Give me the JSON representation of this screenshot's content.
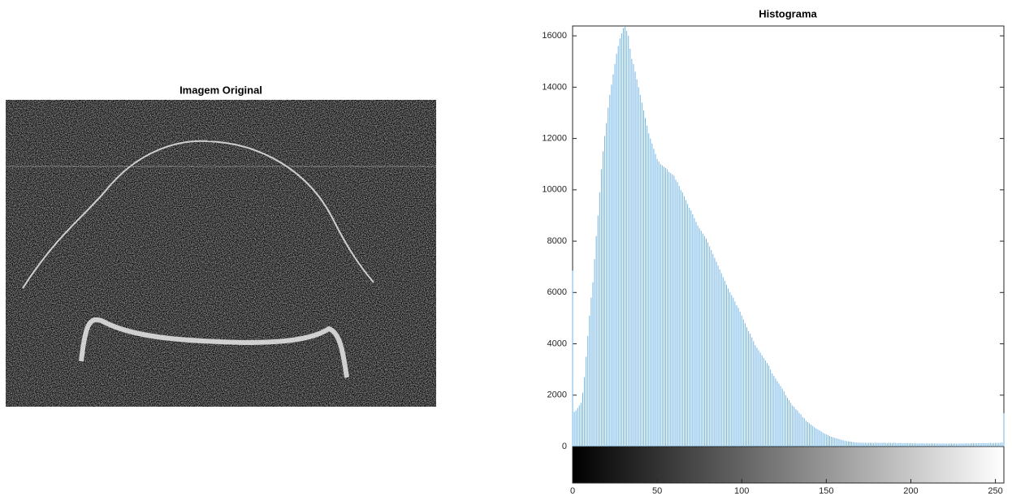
{
  "image_panel": {
    "title": "Imagem Original"
  },
  "chart_data": {
    "type": "histogram-stem",
    "title": "Histograma",
    "color": "#72b5e6",
    "x": [
      0,
      1,
      2,
      3,
      4,
      5,
      6,
      7,
      8,
      9,
      10,
      11,
      12,
      13,
      14,
      15,
      16,
      17,
      18,
      19,
      20,
      21,
      22,
      23,
      24,
      25,
      26,
      27,
      28,
      29,
      30,
      31,
      32,
      33,
      34,
      35,
      36,
      37,
      38,
      39,
      40,
      41,
      42,
      43,
      44,
      45,
      46,
      47,
      48,
      49,
      50,
      51,
      52,
      53,
      54,
      55,
      56,
      57,
      58,
      59,
      60,
      61,
      62,
      63,
      64,
      65,
      66,
      67,
      68,
      69,
      70,
      71,
      72,
      73,
      74,
      75,
      76,
      77,
      78,
      79,
      80,
      81,
      82,
      83,
      84,
      85,
      86,
      87,
      88,
      89,
      90,
      91,
      92,
      93,
      94,
      95,
      96,
      97,
      98,
      99,
      100,
      101,
      102,
      103,
      104,
      105,
      106,
      107,
      108,
      109,
      110,
      111,
      112,
      113,
      114,
      115,
      116,
      117,
      118,
      119,
      120,
      121,
      122,
      123,
      124,
      125,
      126,
      127,
      128,
      129,
      130,
      131,
      132,
      133,
      134,
      135,
      136,
      137,
      138,
      139,
      140,
      141,
      142,
      143,
      144,
      145,
      146,
      147,
      148,
      149,
      150,
      151,
      152,
      153,
      154,
      155,
      156,
      157,
      158,
      159,
      160,
      161,
      162,
      163,
      164,
      165,
      166,
      167,
      168,
      169,
      170,
      171,
      172,
      173,
      174,
      175,
      176,
      177,
      178,
      179,
      180,
      181,
      182,
      183,
      184,
      185,
      186,
      187,
      188,
      189,
      190,
      191,
      192,
      193,
      194,
      195,
      196,
      197,
      198,
      199,
      200,
      201,
      202,
      203,
      204,
      205,
      206,
      207,
      208,
      209,
      210,
      211,
      212,
      213,
      214,
      215,
      216,
      217,
      218,
      219,
      220,
      221,
      222,
      223,
      224,
      225,
      226,
      227,
      228,
      229,
      230,
      231,
      232,
      233,
      234,
      235,
      236,
      237,
      238,
      239,
      240,
      241,
      242,
      243,
      244,
      245,
      246,
      247,
      248,
      249,
      250,
      251,
      252,
      253,
      254,
      255
    ],
    "values": [
      6850,
      1350,
      1400,
      1500,
      1600,
      1700,
      2100,
      2700,
      3500,
      4300,
      5100,
      5800,
      6400,
      7300,
      8200,
      9000,
      9900,
      10800,
      11500,
      12100,
      12600,
      13200,
      13700,
      14100,
      14500,
      14900,
      15300,
      15600,
      15900,
      16100,
      16300,
      16380,
      16200,
      16000,
      15500,
      15100,
      14900,
      14600,
      14300,
      14000,
      13700,
      13400,
      13100,
      12800,
      12500,
      12200,
      12000,
      11800,
      11600,
      11400,
      11200,
      11100,
      11000,
      10950,
      10900,
      10850,
      10800,
      10700,
      10650,
      10600,
      10550,
      10400,
      10300,
      10150,
      10000,
      9900,
      9750,
      9600,
      9450,
      9300,
      9200,
      9050,
      8900,
      8750,
      8600,
      8500,
      8400,
      8300,
      8200,
      8100,
      7950,
      7800,
      7650,
      7500,
      7350,
      7200,
      7050,
      6900,
      6750,
      6600,
      6450,
      6300,
      6150,
      6000,
      5900,
      5800,
      5650,
      5500,
      5400,
      5250,
      5100,
      4950,
      4800,
      4650,
      4500,
      4400,
      4250,
      4100,
      3950,
      3850,
      3750,
      3650,
      3550,
      3450,
      3350,
      3250,
      3150,
      3000,
      2850,
      2750,
      2650,
      2550,
      2450,
      2350,
      2250,
      2150,
      2000,
      1900,
      1800,
      1700,
      1600,
      1550,
      1450,
      1400,
      1300,
      1250,
      1150,
      1100,
      1000,
      950,
      900,
      850,
      800,
      750,
      700,
      660,
      630,
      580,
      540,
      500,
      470,
      440,
      410,
      380,
      360,
      340,
      320,
      300,
      280,
      260,
      240,
      220,
      210,
      200,
      190,
      180,
      170,
      160,
      155,
      150,
      150,
      145,
      140,
      150,
      135,
      140,
      145,
      140,
      135,
      150,
      140,
      145,
      135,
      140,
      150,
      140,
      130,
      145,
      140,
      135,
      145,
      140,
      130,
      135,
      140,
      125,
      135,
      130,
      140,
      125,
      130,
      120,
      130,
      125,
      115,
      125,
      120,
      130,
      115,
      120,
      125,
      115,
      120,
      110,
      125,
      115,
      120,
      110,
      115,
      120,
      110,
      115,
      110,
      120,
      115,
      110,
      120,
      115,
      110,
      115,
      120,
      115,
      120,
      125,
      115,
      120,
      125,
      130,
      120,
      125,
      130,
      125,
      130,
      135,
      125,
      130,
      135,
      140,
      130,
      135,
      140,
      135,
      140,
      145,
      150,
      1300
    ],
    "xlim": [
      0,
      255
    ],
    "xticks": [
      0,
      50,
      100,
      150,
      200,
      250
    ],
    "ylim": [
      0,
      16384
    ],
    "yticks": [
      0,
      2000,
      4000,
      6000,
      8000,
      10000,
      12000,
      14000,
      16000
    ]
  }
}
